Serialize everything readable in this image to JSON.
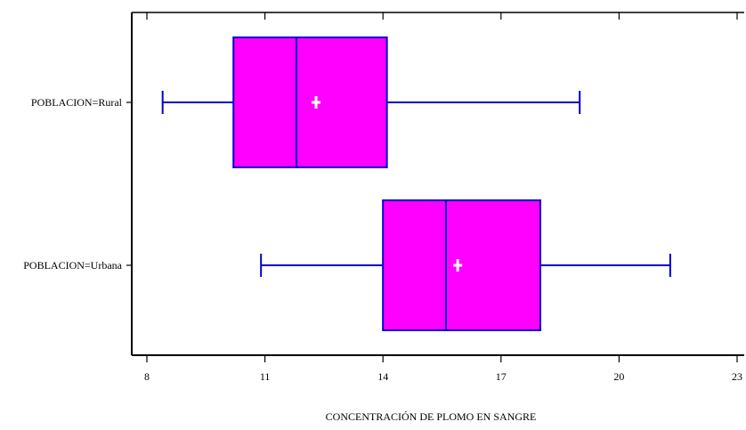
{
  "chart_data": {
    "type": "boxplot",
    "orientation": "horizontal",
    "xlabel": "CONCENTRACIÓN DE PLOMO EN SANGRE",
    "xlim": [
      8,
      23
    ],
    "xticks": [
      8,
      11,
      14,
      17,
      20,
      23
    ],
    "xtick_labels": [
      "8",
      "11",
      "14",
      "17",
      "20",
      "23"
    ],
    "categories": [
      "POBLACION=Rural",
      "POBLACION=Urbana"
    ],
    "boxes": [
      {
        "category": "POBLACION=Rural",
        "min": 8.4,
        "q1": 10.2,
        "median": 11.8,
        "q3": 14.1,
        "max": 19.0,
        "mean": 12.3
      },
      {
        "category": "POBLACION=Urbana",
        "min": 10.9,
        "q1": 14.0,
        "median": 15.6,
        "q3": 18.0,
        "max": 21.3,
        "mean": 15.9
      }
    ],
    "colors": {
      "box_fill": "#ff00ff",
      "box_stroke": "#0000cc",
      "whisker": "#0000cc",
      "mean_marker": "#ffffff",
      "axis": "#000000"
    },
    "mean_marker": "plus",
    "grid": false,
    "legend": "none"
  }
}
